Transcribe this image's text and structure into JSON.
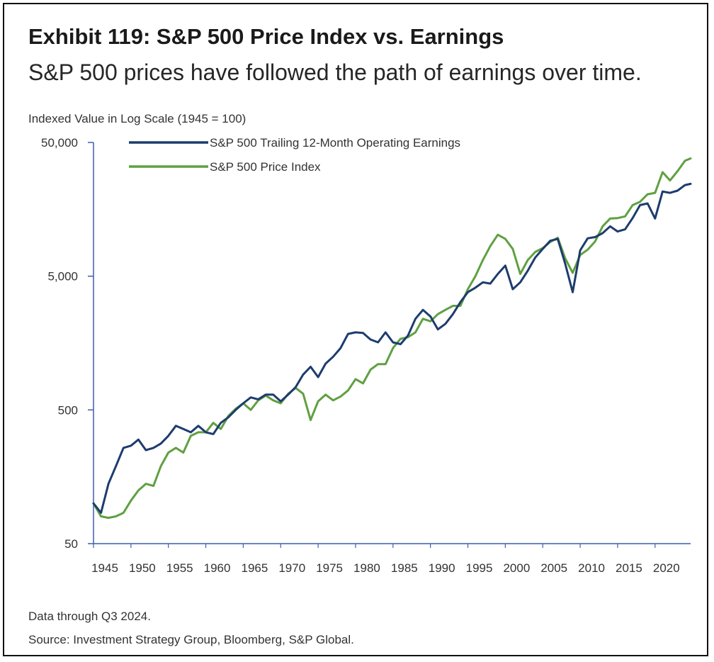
{
  "header": {
    "title": "Exhibit 119: S&P 500 Price Index vs. Earnings",
    "subtitle": "S&P 500 prices have followed the path of earnings over time."
  },
  "footer": {
    "data_note": "Data through Q3 2024.",
    "source": "Source: Investment Strategy Group, Bloomberg, S&P Global."
  },
  "colors": {
    "earnings": "#1d3c6e",
    "price": "#5fa041",
    "axis": "#3d5fa8",
    "text": "#333333"
  },
  "chart_data": {
    "type": "line",
    "title": "Exhibit 119: S&P 500 Price Index vs. Earnings",
    "ylabel": "Indexed Value in Log Scale (1945 = 100)",
    "yscale": "log",
    "ylim": [
      50,
      50000
    ],
    "xlim": [
      1945,
      2024.75
    ],
    "yticks": [
      50,
      500,
      5000,
      50000
    ],
    "ytick_labels": [
      "50",
      "500",
      "5,000",
      "50,000"
    ],
    "xticks": [
      1945,
      1950,
      1955,
      1960,
      1965,
      1970,
      1975,
      1980,
      1985,
      1990,
      1995,
      2000,
      2005,
      2010,
      2015,
      2020
    ],
    "grid": false,
    "legend": "top-left",
    "series": [
      {
        "name": "S&P 500 Trailing 12-Month Operating Earnings",
        "color": "#1d3c6e",
        "points": [
          [
            1945,
            100
          ],
          [
            1946,
            85
          ],
          [
            1947,
            140
          ],
          [
            1948,
            190
          ],
          [
            1949,
            260
          ],
          [
            1950,
            270
          ],
          [
            1951,
            300
          ],
          [
            1952,
            250
          ],
          [
            1953,
            260
          ],
          [
            1954,
            280
          ],
          [
            1955,
            320
          ],
          [
            1956,
            380
          ],
          [
            1957,
            360
          ],
          [
            1958,
            340
          ],
          [
            1959,
            380
          ],
          [
            1960,
            340
          ],
          [
            1961,
            330
          ],
          [
            1962,
            400
          ],
          [
            1963,
            440
          ],
          [
            1964,
            500
          ],
          [
            1965,
            560
          ],
          [
            1966,
            620
          ],
          [
            1967,
            600
          ],
          [
            1968,
            650
          ],
          [
            1969,
            650
          ],
          [
            1970,
            580
          ],
          [
            1971,
            650
          ],
          [
            1972,
            740
          ],
          [
            1973,
            920
          ],
          [
            1974,
            1050
          ],
          [
            1975,
            880
          ],
          [
            1976,
            1110
          ],
          [
            1977,
            1250
          ],
          [
            1978,
            1450
          ],
          [
            1979,
            1850
          ],
          [
            1980,
            1900
          ],
          [
            1981,
            1880
          ],
          [
            1982,
            1680
          ],
          [
            1983,
            1600
          ],
          [
            1984,
            1900
          ],
          [
            1985,
            1600
          ],
          [
            1986,
            1550
          ],
          [
            1987,
            1800
          ],
          [
            1988,
            2400
          ],
          [
            1989,
            2800
          ],
          [
            1990,
            2500
          ],
          [
            1991,
            2000
          ],
          [
            1992,
            2200
          ],
          [
            1993,
            2600
          ],
          [
            1994,
            3200
          ],
          [
            1995,
            3800
          ],
          [
            1996,
            4100
          ],
          [
            1997,
            4500
          ],
          [
            1998,
            4400
          ],
          [
            1999,
            5200
          ],
          [
            2000,
            6000
          ],
          [
            2001,
            4000
          ],
          [
            2002,
            4500
          ],
          [
            2003,
            5500
          ],
          [
            2004,
            6900
          ],
          [
            2005,
            8000
          ],
          [
            2006,
            9200
          ],
          [
            2007,
            9500
          ],
          [
            2008,
            6200
          ],
          [
            2009,
            3800
          ],
          [
            2010,
            7800
          ],
          [
            2011,
            9600
          ],
          [
            2012,
            9800
          ],
          [
            2013,
            10500
          ],
          [
            2014,
            11800
          ],
          [
            2015,
            10800
          ],
          [
            2016,
            11200
          ],
          [
            2017,
            13600
          ],
          [
            2018,
            17000
          ],
          [
            2019,
            17500
          ],
          [
            2020,
            13500
          ],
          [
            2021,
            21500
          ],
          [
            2022,
            21000
          ],
          [
            2023,
            21800
          ],
          [
            2024,
            24000
          ],
          [
            2024.75,
            24500
          ]
        ]
      },
      {
        "name": "S&P 500 Price Index",
        "color": "#5fa041",
        "points": [
          [
            1945,
            100
          ],
          [
            1946,
            80
          ],
          [
            1947,
            78
          ],
          [
            1948,
            80
          ],
          [
            1949,
            85
          ],
          [
            1950,
            105
          ],
          [
            1951,
            125
          ],
          [
            1952,
            140
          ],
          [
            1953,
            135
          ],
          [
            1954,
            190
          ],
          [
            1955,
            240
          ],
          [
            1956,
            260
          ],
          [
            1957,
            240
          ],
          [
            1958,
            320
          ],
          [
            1959,
            340
          ],
          [
            1960,
            340
          ],
          [
            1961,
            400
          ],
          [
            1962,
            360
          ],
          [
            1963,
            450
          ],
          [
            1964,
            510
          ],
          [
            1965,
            560
          ],
          [
            1966,
            500
          ],
          [
            1967,
            590
          ],
          [
            1968,
            640
          ],
          [
            1969,
            590
          ],
          [
            1970,
            560
          ],
          [
            1971,
            660
          ],
          [
            1972,
            730
          ],
          [
            1973,
            660
          ],
          [
            1974,
            420
          ],
          [
            1975,
            580
          ],
          [
            1976,
            650
          ],
          [
            1977,
            590
          ],
          [
            1978,
            630
          ],
          [
            1979,
            700
          ],
          [
            1980,
            850
          ],
          [
            1981,
            790
          ],
          [
            1982,
            1000
          ],
          [
            1983,
            1100
          ],
          [
            1984,
            1100
          ],
          [
            1985,
            1450
          ],
          [
            1986,
            1700
          ],
          [
            1987,
            1750
          ],
          [
            1988,
            1900
          ],
          [
            1989,
            2400
          ],
          [
            1990,
            2300
          ],
          [
            1991,
            2600
          ],
          [
            1992,
            2800
          ],
          [
            1993,
            3000
          ],
          [
            1994,
            3000
          ],
          [
            1995,
            4000
          ],
          [
            1996,
            5000
          ],
          [
            1997,
            6600
          ],
          [
            1998,
            8400
          ],
          [
            1999,
            10200
          ],
          [
            2000,
            9500
          ],
          [
            2001,
            8000
          ],
          [
            2002,
            5200
          ],
          [
            2003,
            6600
          ],
          [
            2004,
            7600
          ],
          [
            2005,
            8100
          ],
          [
            2006,
            9000
          ],
          [
            2007,
            9700
          ],
          [
            2008,
            6800
          ],
          [
            2009,
            5300
          ],
          [
            2010,
            7200
          ],
          [
            2011,
            7900
          ],
          [
            2012,
            9100
          ],
          [
            2013,
            11800
          ],
          [
            2014,
            13500
          ],
          [
            2015,
            13600
          ],
          [
            2016,
            14000
          ],
          [
            2017,
            17000
          ],
          [
            2018,
            18000
          ],
          [
            2019,
            20500
          ],
          [
            2020,
            21000
          ],
          [
            2021,
            30000
          ],
          [
            2022,
            26000
          ],
          [
            2023,
            30500
          ],
          [
            2024,
            36500
          ],
          [
            2024.75,
            38000
          ]
        ]
      }
    ]
  }
}
